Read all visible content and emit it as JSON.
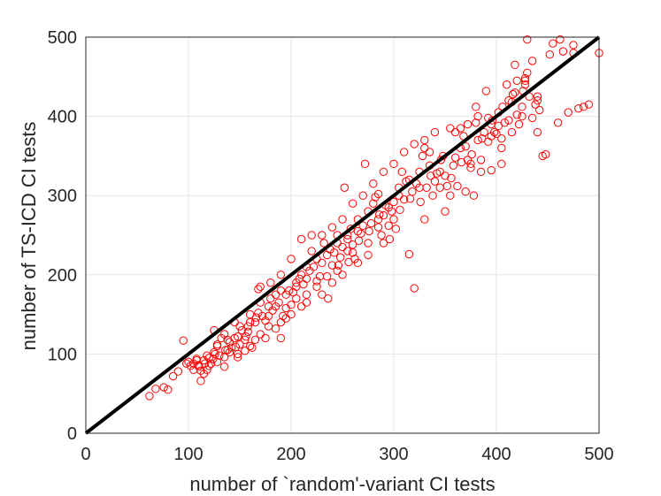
{
  "chart_data": {
    "type": "scatter",
    "xlabel": "number of `random'-variant CI tests",
    "ylabel": "number of TS-ICD CI tests",
    "xlim": [
      0,
      500
    ],
    "ylim": [
      0,
      500
    ],
    "xticks": [
      "0",
      "100",
      "200",
      "300",
      "400",
      "500"
    ],
    "yticks": [
      "0",
      "100",
      "200",
      "300",
      "400",
      "500"
    ],
    "grid": true,
    "marker_color": "#ff0000",
    "reference_line": {
      "x": [
        0,
        500
      ],
      "y": [
        0,
        500
      ],
      "color": "#000000"
    },
    "points": [
      [
        62,
        47
      ],
      [
        68,
        56
      ],
      [
        76,
        58
      ],
      [
        80,
        55
      ],
      [
        85,
        72
      ],
      [
        95,
        117
      ],
      [
        100,
        90
      ],
      [
        102,
        85
      ],
      [
        105,
        88
      ],
      [
        108,
        92
      ],
      [
        110,
        84
      ],
      [
        112,
        66
      ],
      [
        115,
        75
      ],
      [
        118,
        80
      ],
      [
        120,
        95
      ],
      [
        122,
        88
      ],
      [
        125,
        102
      ],
      [
        128,
        110
      ],
      [
        130,
        98
      ],
      [
        132,
        120
      ],
      [
        135,
        84
      ],
      [
        138,
        105
      ],
      [
        140,
        115
      ],
      [
        142,
        108
      ],
      [
        145,
        120
      ],
      [
        148,
        96
      ],
      [
        150,
        112
      ],
      [
        152,
        130
      ],
      [
        155,
        118
      ],
      [
        158,
        135
      ],
      [
        160,
        150
      ],
      [
        162,
        108
      ],
      [
        165,
        140
      ],
      [
        168,
        182
      ],
      [
        170,
        185
      ],
      [
        172,
        148
      ],
      [
        175,
        142
      ],
      [
        178,
        160
      ],
      [
        180,
        170
      ],
      [
        182,
        155
      ],
      [
        185,
        175
      ],
      [
        188,
        165
      ],
      [
        190,
        180
      ],
      [
        192,
        148
      ],
      [
        195,
        145
      ],
      [
        198,
        180
      ],
      [
        200,
        162
      ],
      [
        202,
        178
      ],
      [
        205,
        185
      ],
      [
        208,
        195
      ],
      [
        210,
        200
      ],
      [
        212,
        188
      ],
      [
        215,
        175
      ],
      [
        218,
        205
      ],
      [
        220,
        230
      ],
      [
        222,
        210
      ],
      [
        225,
        220
      ],
      [
        228,
        198
      ],
      [
        230,
        215
      ],
      [
        232,
        240
      ],
      [
        235,
        225
      ],
      [
        238,
        232
      ],
      [
        240,
        212
      ],
      [
        242,
        228
      ],
      [
        245,
        250
      ],
      [
        248,
        222
      ],
      [
        250,
        235
      ],
      [
        252,
        310
      ],
      [
        255,
        245
      ],
      [
        258,
        258
      ],
      [
        260,
        238
      ],
      [
        262,
        220
      ],
      [
        265,
        270
      ],
      [
        268,
        252
      ],
      [
        270,
        262
      ],
      [
        272,
        340
      ],
      [
        275,
        280
      ],
      [
        278,
        265
      ],
      [
        280,
        290
      ],
      [
        282,
        298
      ],
      [
        285,
        302
      ],
      [
        288,
        250
      ],
      [
        290,
        275
      ],
      [
        292,
        288
      ],
      [
        295,
        262
      ],
      [
        298,
        280
      ],
      [
        300,
        292
      ],
      [
        302,
        258
      ],
      [
        305,
        310
      ],
      [
        308,
        330
      ],
      [
        310,
        295
      ],
      [
        312,
        318
      ],
      [
        315,
        226
      ],
      [
        318,
        305
      ],
      [
        320,
        183
      ],
      [
        322,
        315
      ],
      [
        325,
        330
      ],
      [
        328,
        350
      ],
      [
        330,
        360
      ],
      [
        332,
        310
      ],
      [
        335,
        338
      ],
      [
        338,
        300
      ],
      [
        340,
        318
      ],
      [
        342,
        328
      ],
      [
        345,
        310
      ],
      [
        348,
        350
      ],
      [
        350,
        325
      ],
      [
        352,
        312
      ],
      [
        355,
        300
      ],
      [
        358,
        338
      ],
      [
        360,
        348
      ],
      [
        362,
        312
      ],
      [
        365,
        385
      ],
      [
        368,
        375
      ],
      [
        370,
        362
      ],
      [
        372,
        345
      ],
      [
        375,
        335
      ],
      [
        378,
        300
      ],
      [
        380,
        392
      ],
      [
        382,
        370
      ],
      [
        385,
        345
      ],
      [
        388,
        380
      ],
      [
        390,
        432
      ],
      [
        392,
        368
      ],
      [
        395,
        390
      ],
      [
        398,
        380
      ],
      [
        400,
        378
      ],
      [
        402,
        405
      ],
      [
        405,
        372
      ],
      [
        408,
        392
      ],
      [
        410,
        440
      ],
      [
        412,
        420
      ],
      [
        415,
        380
      ],
      [
        418,
        465
      ],
      [
        420,
        402
      ],
      [
        422,
        390
      ],
      [
        425,
        412
      ],
      [
        428,
        445
      ],
      [
        430,
        455
      ],
      [
        432,
        425
      ],
      [
        435,
        398
      ],
      [
        438,
        415
      ],
      [
        440,
        420
      ],
      [
        442,
        408
      ],
      [
        445,
        350
      ],
      [
        448,
        352
      ],
      [
        452,
        478
      ],
      [
        455,
        492
      ],
      [
        460,
        392
      ],
      [
        465,
        482
      ],
      [
        470,
        405
      ],
      [
        475,
        480
      ],
      [
        480,
        410
      ],
      [
        485,
        412
      ],
      [
        490,
        415
      ],
      [
        500,
        480
      ],
      [
        430,
        497
      ],
      [
        475,
        490
      ],
      [
        462,
        497
      ],
      [
        428,
        448
      ],
      [
        395,
        332
      ],
      [
        405,
        340
      ],
      [
        418,
        430
      ],
      [
        420,
        445
      ],
      [
        435,
        470
      ],
      [
        440,
        425
      ],
      [
        380,
        412
      ],
      [
        370,
        305
      ],
      [
        350,
        280
      ],
      [
        330,
        270
      ],
      [
        300,
        270
      ],
      [
        290,
        240
      ],
      [
        285,
        260
      ],
      [
        260,
        228
      ],
      [
        240,
        190
      ],
      [
        230,
        175
      ],
      [
        225,
        185
      ],
      [
        215,
        165
      ],
      [
        210,
        160
      ],
      [
        200,
        150
      ],
      [
        195,
        158
      ],
      [
        190,
        140
      ],
      [
        185,
        132
      ],
      [
        175,
        120
      ],
      [
        170,
        125
      ],
      [
        165,
        118
      ],
      [
        160,
        110
      ],
      [
        155,
        104
      ],
      [
        148,
        100
      ],
      [
        140,
        102
      ],
      [
        135,
        96
      ],
      [
        128,
        90
      ],
      [
        120,
        85
      ],
      [
        115,
        92
      ],
      [
        110,
        86
      ],
      [
        105,
        80
      ],
      [
        98,
        88
      ],
      [
        90,
        78
      ],
      [
        150,
        135
      ],
      [
        160,
        140
      ],
      [
        170,
        165
      ],
      [
        180,
        190
      ],
      [
        190,
        200
      ],
      [
        200,
        220
      ],
      [
        210,
        245
      ],
      [
        220,
        250
      ],
      [
        230,
        250
      ],
      [
        240,
        260
      ],
      [
        250,
        270
      ],
      [
        260,
        290
      ],
      [
        270,
        300
      ],
      [
        280,
        315
      ],
      [
        290,
        330
      ],
      [
        300,
        340
      ],
      [
        310,
        355
      ],
      [
        320,
        365
      ],
      [
        330,
        370
      ],
      [
        340,
        380
      ],
      [
        355,
        385
      ],
      [
        365,
        360
      ],
      [
        375,
        340
      ],
      [
        385,
        330
      ],
      [
        395,
        375
      ],
      [
        405,
        360
      ],
      [
        412,
        395
      ],
      [
        425,
        400
      ],
      [
        440,
        380
      ],
      [
        250,
        200
      ],
      [
        245,
        205
      ],
      [
        255,
        230
      ],
      [
        265,
        215
      ],
      [
        275,
        225
      ],
      [
        235,
        198
      ],
      [
        225,
        192
      ],
      [
        205,
        170
      ],
      [
        215,
        210
      ],
      [
        185,
        160
      ],
      [
        178,
        148
      ],
      [
        168,
        152
      ],
      [
        158,
        128
      ],
      [
        148,
        122
      ],
      [
        138,
        118
      ],
      [
        128,
        112
      ],
      [
        118,
        98
      ],
      [
        108,
        94
      ],
      [
        145,
        140
      ],
      [
        125,
        130
      ],
      [
        135,
        125
      ],
      [
        195,
        175
      ],
      [
        205,
        190
      ],
      [
        215,
        195
      ],
      [
        245,
        240
      ],
      [
        255,
        250
      ],
      [
        265,
        255
      ],
      [
        275,
        240
      ],
      [
        285,
        270
      ],
      [
        295,
        285
      ],
      [
        305,
        300
      ],
      [
        315,
        320
      ],
      [
        325,
        310
      ],
      [
        335,
        355
      ],
      [
        345,
        330
      ],
      [
        360,
        380
      ],
      [
        372,
        390
      ],
      [
        382,
        400
      ],
      [
        392,
        398
      ],
      [
        402,
        388
      ],
      [
        415,
        418
      ],
      [
        428,
        440
      ],
      [
        236,
        170
      ],
      [
        246,
        212
      ],
      [
        256,
        216
      ],
      [
        266,
        243
      ],
      [
        276,
        255
      ],
      [
        286,
        276
      ],
      [
        296,
        245
      ],
      [
        306,
        282
      ],
      [
        316,
        296
      ],
      [
        326,
        292
      ],
      [
        336,
        325
      ],
      [
        346,
        345
      ],
      [
        356,
        322
      ],
      [
        366,
        342
      ],
      [
        376,
        352
      ],
      [
        386,
        372
      ],
      [
        396,
        395
      ],
      [
        406,
        412
      ],
      [
        416,
        428
      ],
      [
        426,
        432
      ],
      [
        190,
        120
      ],
      [
        178,
        135
      ],
      [
        166,
        146
      ],
      [
        156,
        122
      ],
      [
        146,
        109
      ],
      [
        136,
        105
      ],
      [
        126,
        100
      ],
      [
        116,
        88
      ],
      [
        112,
        79
      ],
      [
        124,
        94
      ]
    ]
  }
}
